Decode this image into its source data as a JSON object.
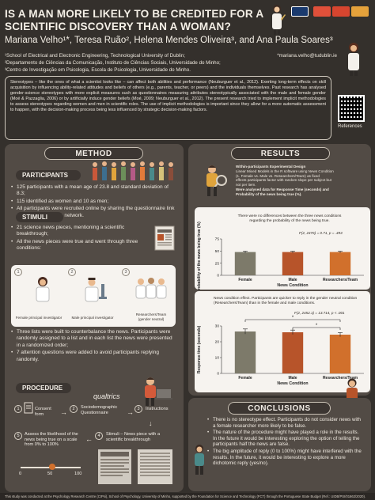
{
  "title": "IS A MAN MORE LIKELY TO BE CREDITED FOR A SCIENTIFIC DISCOVERY THAN A WOMAN?",
  "authors": "Mariana Velho¹*, Teresa Ruão², Helena Mendes Oliveira³, and Ana Paula Soares³",
  "affiliations": [
    "¹School of Electrical and Electronic Engineering, Technological University of Dublin;",
    "²Departamento de Ciências da Comunicação, Instituto de Ciências Sociais, Universidade do Minho;",
    "³Centro de Investigação em Psicologia, Escola de Psicologia, Universidade do Minho."
  ],
  "email": "*mariana.velho@tudublin.ie",
  "intro": "Stereotypes – like the ones of what a scientist looks like – can affect both abilities and performance (Neuburguer et al., 2012). Exerting long-term effects on skill acquisition by influencing ability-related attitudes and beliefs of others (e.g., parents, teacher, or peers) and the individuals themselves. Past research has analysed gender-science stereotypes with more explicit measures such as questionnaires measuring attributes stereotypically associated with the male and female gender (Moé & Pazzaglia, 2006) or by artificially induce gender beliefs (Moé, 2009; Neuburguer et al., 2012). The present research tried to implement implicit methodologies to assess stereotypes regarding women and men in scientific roles. The use of implicit methodologies is important since they allow for a more automatic assessment to happen, with the decision-making process being less influenced by strategic decision-making factors.",
  "references_label": "References",
  "method": {
    "header": "METHOD",
    "participants_header": "PARTICIPANTS",
    "participants": [
      "125 participants with a mean age of 23.8 and standard deviation of 8.3;",
      "115 identified as women and 10 as men;",
      "All participants were recruited online by sharing the questionnaire link with the researchers network."
    ],
    "stimuli_header": "STIMULI",
    "stimuli": [
      "21 science news pieces, mentioning a scientific breakthrough;",
      "All the news pieces were true and went through three conditions:"
    ],
    "conditions": [
      {
        "num": "1",
        "label": "Female principal investigator"
      },
      {
        "num": "2",
        "label": "Male principal investigator"
      },
      {
        "num": "3",
        "label": "Researchers/Team (gender neutral)"
      }
    ],
    "stimuli2": [
      "Three lists were built to counterbalance the news. Participants were randomly assigned to a list and in each list the news were presented in a randomized order;",
      "7 attention questions were added to avoid participants replying randomly."
    ],
    "procedure_header": "PROCEDURE",
    "qualtrics": "qualtrics",
    "steps": [
      {
        "num": "1",
        "label": "Consent form"
      },
      {
        "num": "2",
        "label": "Sociodemographic Questionnaire"
      },
      {
        "num": "3",
        "label": "Instructions"
      },
      {
        "num": "5",
        "label": "Assess the likelihood of the news being true on a scale from 0% to 100%"
      },
      {
        "num": "4",
        "label": "Stimuli – News piece with a scientific breakthrough"
      }
    ],
    "slider_ticks": [
      "0",
      "50",
      "100"
    ]
  },
  "results": {
    "header": "RESULTS",
    "design_title": "Within-participants Experimental Design",
    "design_lines": [
      "Linear Mixed Models in the R software using News Condition",
      "(1. Female vs. Male vs. Researchers/Team) as fixed",
      "effects participants factor with random slope per subject but",
      "not per item.",
      "Were analysed data for Response Time (seconds) and",
      "Probability of the news being true (%)."
    ],
    "chart1_note": "There were no differences between the three news conditions regarding the probability of the news being true.",
    "chart1_stat": "F(2, 2476) = 0.71, p = .493",
    "chart2_note": "News condition effect. Participants are quicker to reply in the gender neutral condition (Researchers/Team) than in the female and male conditions.",
    "chart2_stat": "F(2, 2452.1) = 13.714, p < .001"
  },
  "chart_data": [
    {
      "type": "bar",
      "categories": [
        "Female",
        "Male",
        "Researchers/Team"
      ],
      "values": [
        48,
        48,
        48
      ],
      "xlabel": "News Condition",
      "ylabel": "Probability of the news being true (%)",
      "ylim": [
        0,
        75
      ],
      "yticks": [
        "0",
        "25",
        "50",
        "75"
      ],
      "colors": [
        "#7d7a6a",
        "#b7542a",
        "#d1702c"
      ]
    },
    {
      "type": "bar",
      "categories": [
        "Female",
        "Male",
        "Researchers/Team"
      ],
      "values": [
        26.5,
        26.0,
        24.5
      ],
      "xlabel": "News Condition",
      "ylabel": "Response time (seconds)",
      "ylim": [
        0,
        30
      ],
      "yticks": [
        "0",
        "10",
        "20",
        "30"
      ],
      "colors": [
        "#7d7a6a",
        "#b7542a",
        "#d1702c"
      ]
    }
  ],
  "conclusions": {
    "header": "CONCLUSIONS",
    "items": [
      "There is no stereotype effect. Participants do not consider news with a female researcher more likely to be false.",
      "The nature of the procedure might have played a role in the results. In the future it would be interesting exploring the option of telling the participants half the news are false.",
      "The big amplitude of reply (0 to 100%) might have interfered with the results. In the future, it would be interesting to explore a more dichotomic reply (yes/no)."
    ]
  },
  "footer": "This study was conducted at the Psychology Research Centre (CIPsi), School of Psychology, University of Minho, supported by the Foundation for Science and Technology (FCT) through the Portuguese State Budget (Ref.: UIDB/PSI/01662/2020)."
}
